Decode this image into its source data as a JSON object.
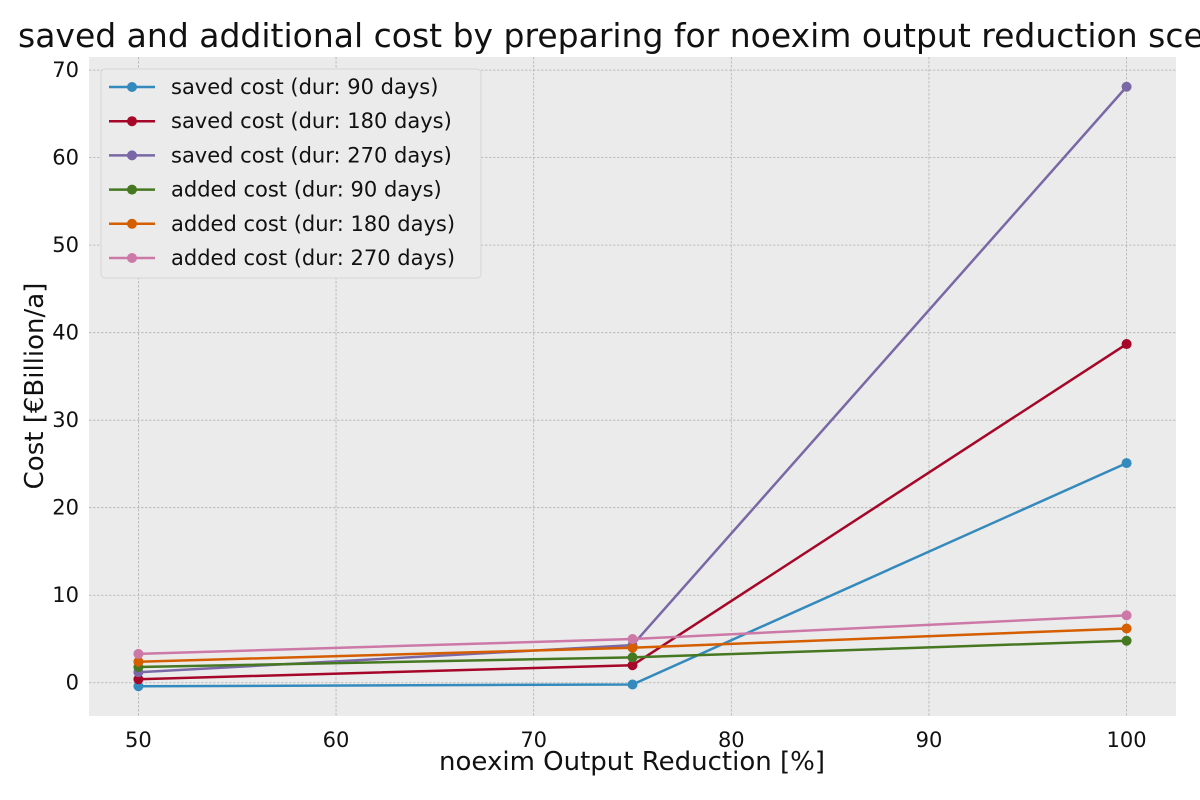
{
  "chart_data": {
    "type": "line",
    "title": "saved and additional cost by preparing for noexim output reduction scenarios",
    "xlabel": "noexim Output Reduction [%]",
    "ylabel": "Cost [€Billion/a]",
    "x": [
      50,
      75,
      100
    ],
    "xlim": [
      47.5,
      102.5
    ],
    "ylim": [
      -3.8,
      71.5
    ],
    "xticks": [
      50,
      60,
      70,
      80,
      90,
      100
    ],
    "yticks": [
      0,
      10,
      20,
      30,
      40,
      50,
      60,
      70
    ],
    "grid": true,
    "legend_position": "upper-left",
    "series": [
      {
        "name": "saved cost (dur: 90 days)",
        "color": "#348ABD",
        "values": [
          -0.4,
          -0.2,
          25.1
        ]
      },
      {
        "name": "saved cost (dur: 180 days)",
        "color": "#A60628",
        "values": [
          0.4,
          2.0,
          38.7
        ]
      },
      {
        "name": "saved cost (dur: 270 days)",
        "color": "#7A68A6",
        "values": [
          1.2,
          4.3,
          68.1
        ]
      },
      {
        "name": "added cost (dur: 90 days)",
        "color": "#467821",
        "values": [
          1.8,
          2.9,
          4.8
        ]
      },
      {
        "name": "added cost (dur: 180 days)",
        "color": "#D55E00",
        "values": [
          2.4,
          4.0,
          6.2
        ]
      },
      {
        "name": "added cost (dur: 270 days)",
        "color": "#CC79A7",
        "values": [
          3.3,
          5.0,
          7.7
        ]
      }
    ]
  }
}
